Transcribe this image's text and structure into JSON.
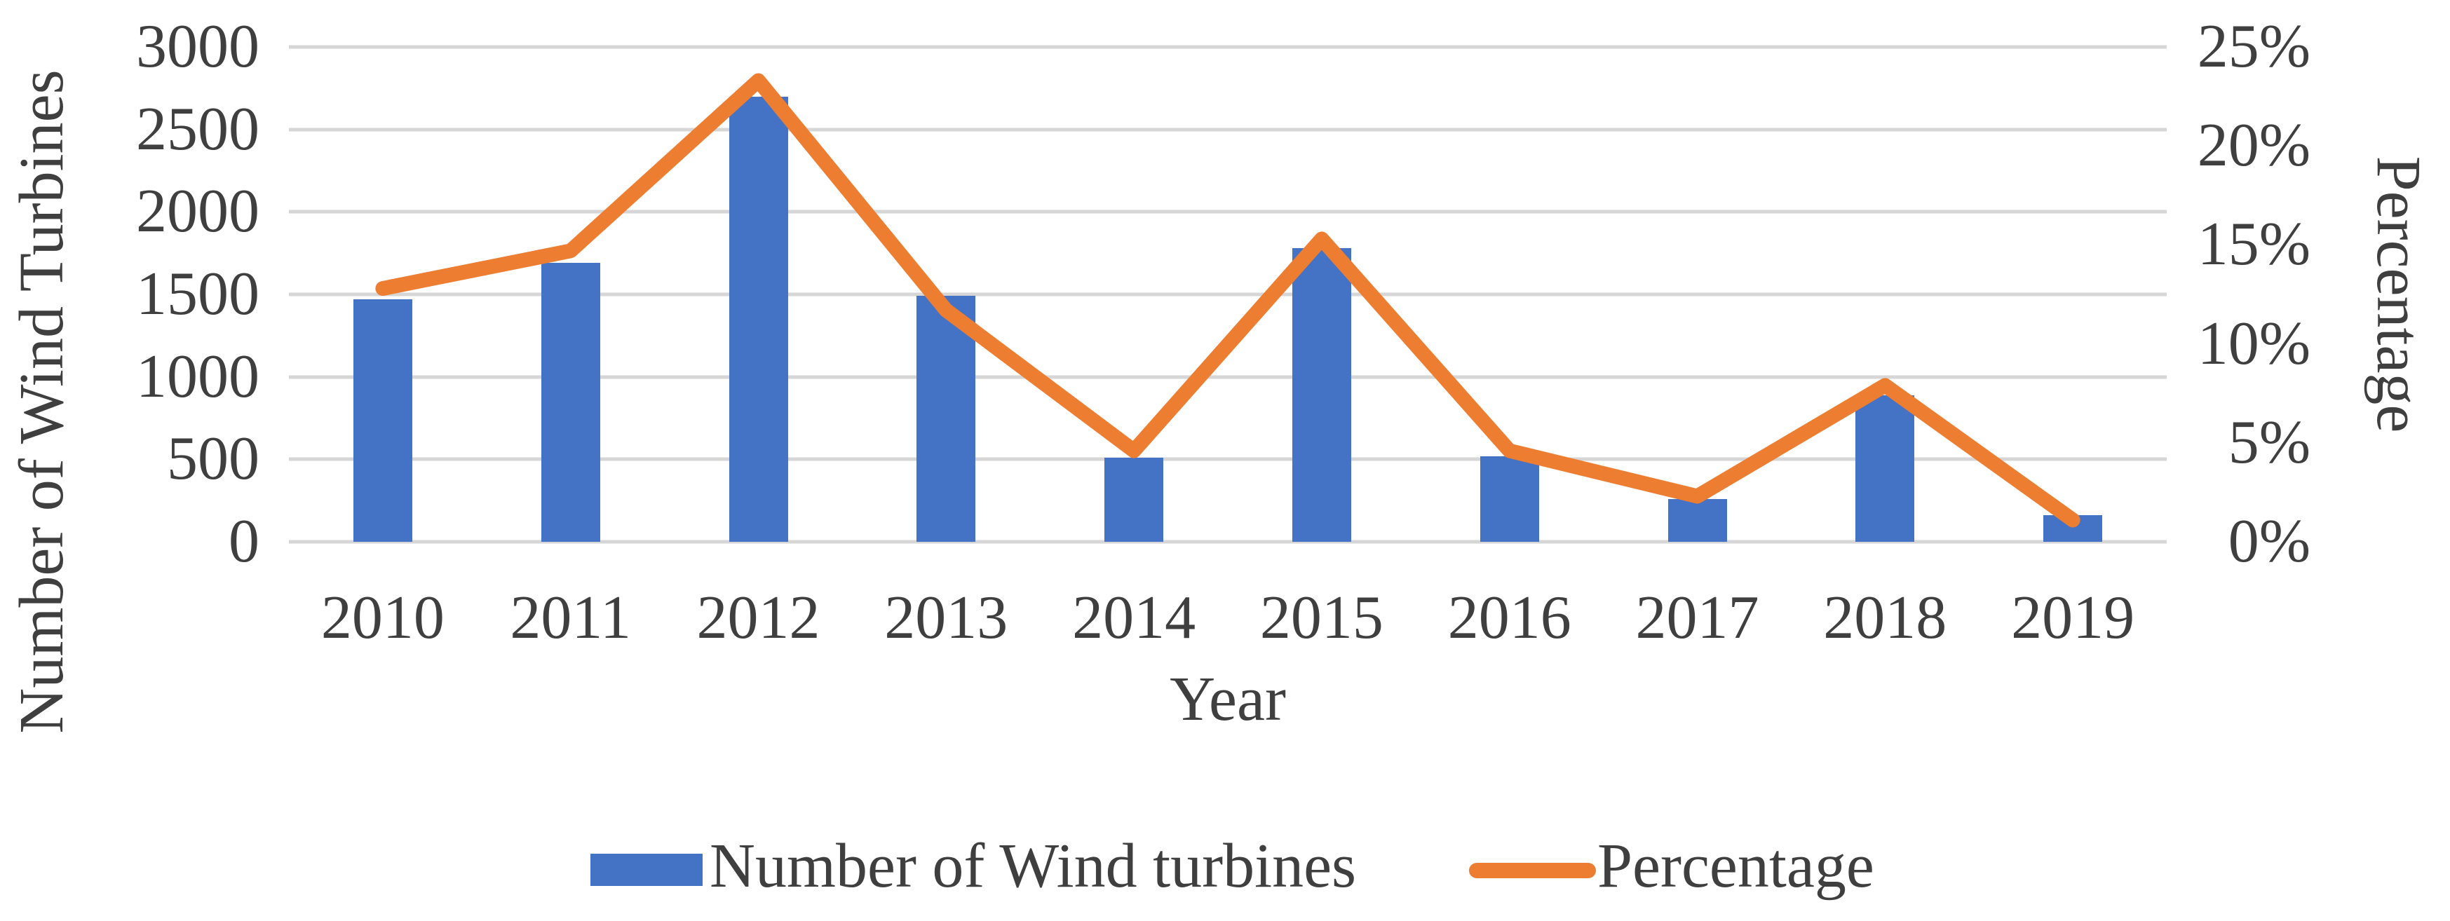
{
  "chart_data": {
    "type": "combo bar+line",
    "categories": [
      "2010",
      "2011",
      "2012",
      "2013",
      "2014",
      "2015",
      "2016",
      "2017",
      "2018",
      "2019"
    ],
    "series": [
      {
        "name": "Number of Wind turbines",
        "type": "bar",
        "axis": "left",
        "color": "#4472C4",
        "values": [
          1470,
          1690,
          2700,
          1490,
          510,
          1780,
          520,
          260,
          890,
          160
        ]
      },
      {
        "name": "Percentage",
        "type": "line",
        "axis": "right",
        "color": "#ED7D31",
        "values": [
          12.8,
          14.7,
          23.3,
          11.7,
          4.6,
          15.3,
          4.6,
          2.3,
          7.9,
          1.1
        ]
      }
    ],
    "x_axis": {
      "title": "Year"
    },
    "left_axis": {
      "title": "Number of Wind Turbines",
      "min": 0,
      "max": 3000,
      "step": 500,
      "tick_labels": [
        "3000",
        "2500",
        "2000",
        "1500",
        "1000",
        "500",
        "0"
      ]
    },
    "right_axis": {
      "title": "Percentage",
      "min": 0,
      "max": 25,
      "step": 5,
      "tick_labels": [
        "25%",
        "20%",
        "15%",
        "10%",
        "5%",
        "0%"
      ]
    },
    "grid": true,
    "legend_position": "bottom"
  },
  "colors": {
    "bar": "#4472C4",
    "line": "#ED7D31",
    "gridline": "#D6D6D6",
    "text": "#3F3F3F",
    "background": "#FFFFFF"
  }
}
